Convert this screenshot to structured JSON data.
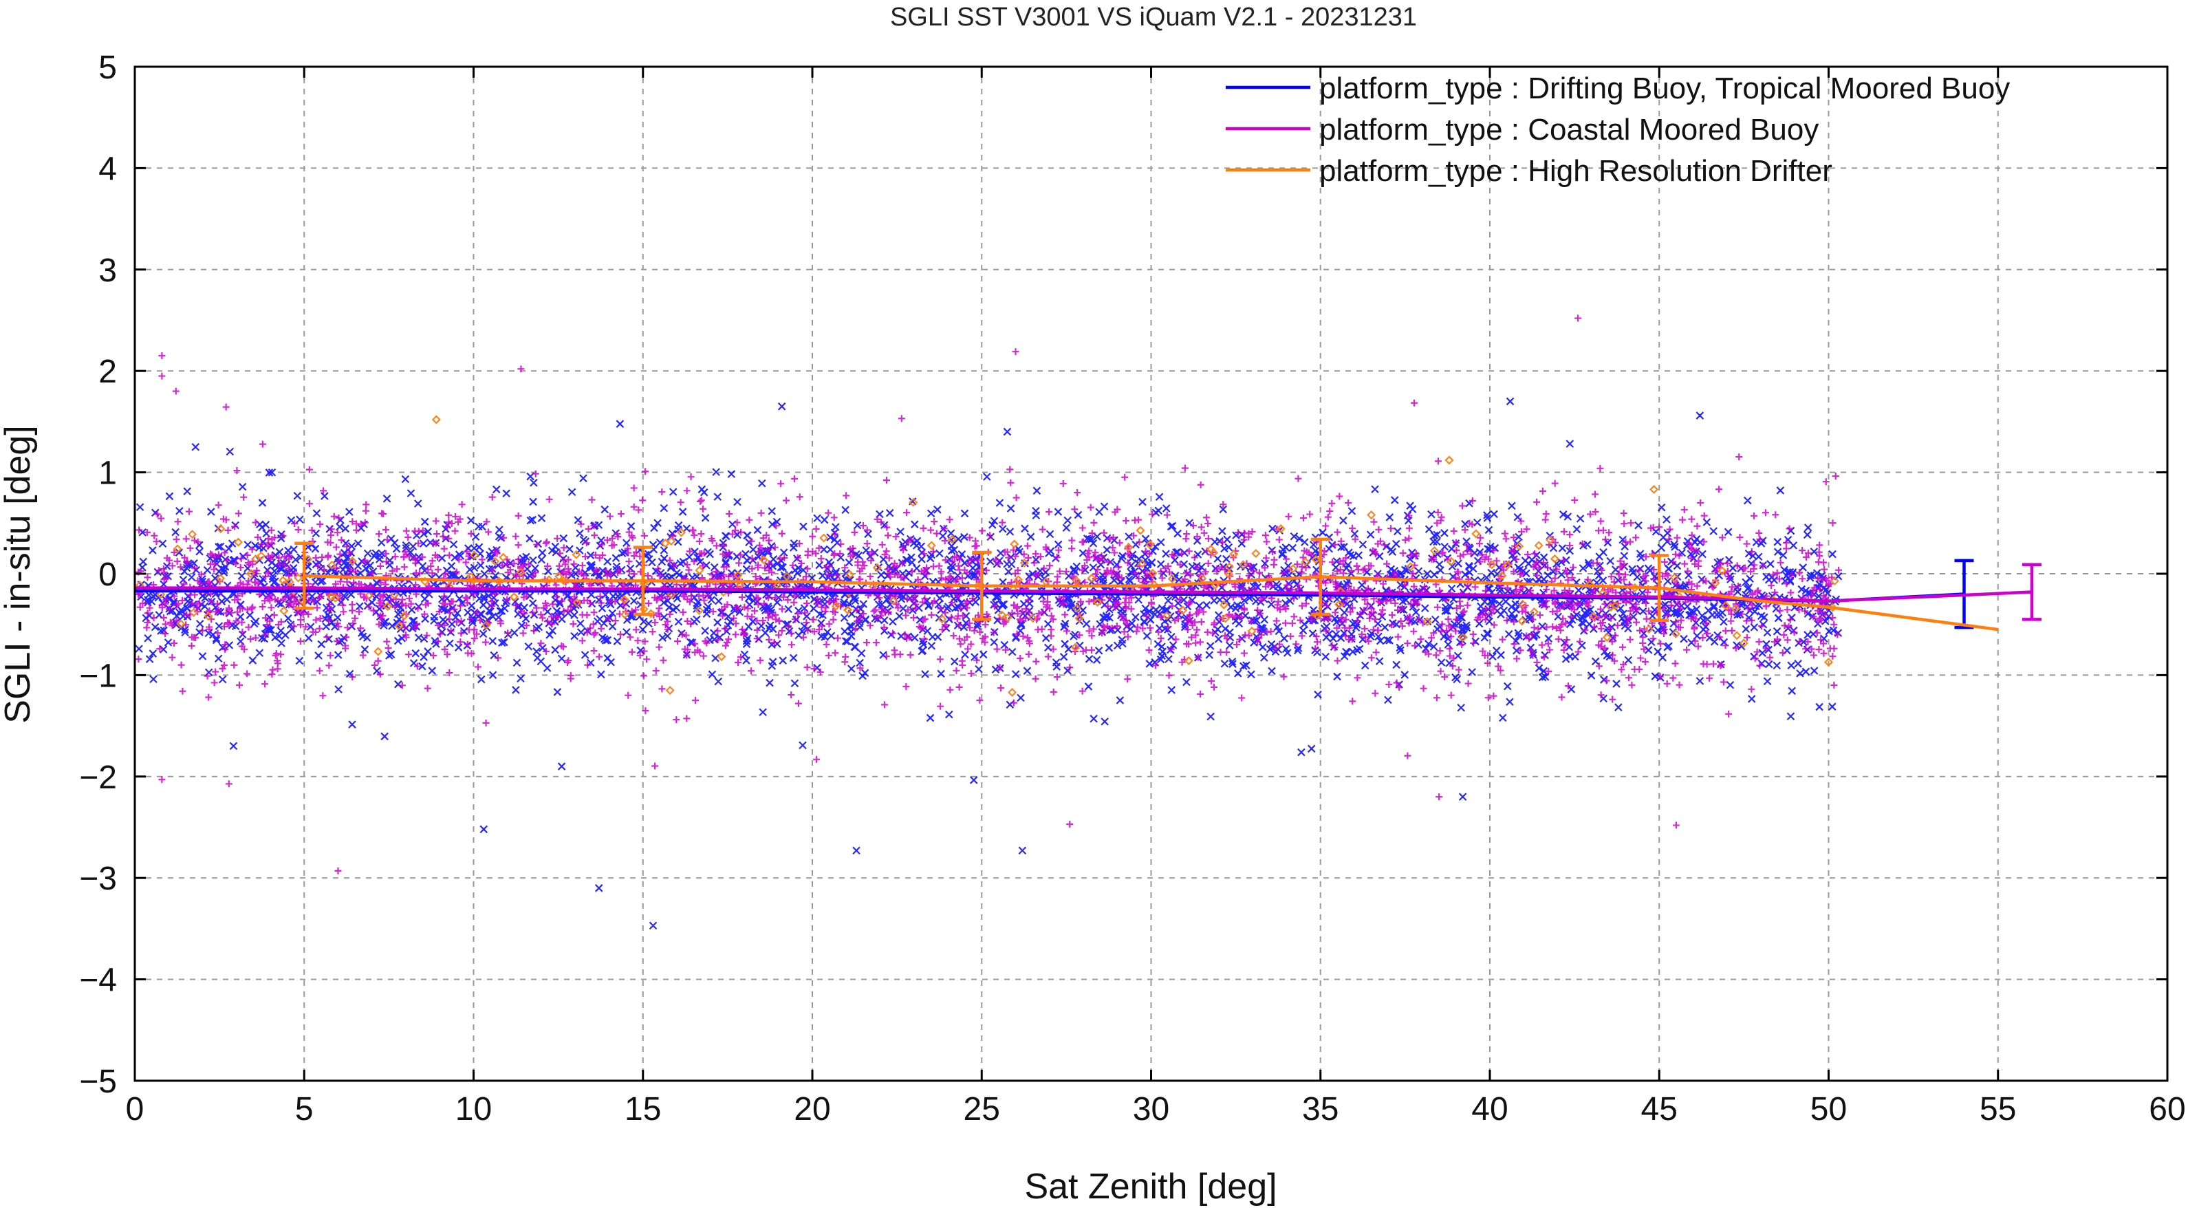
{
  "colors": {
    "tropical": "#0000ff",
    "coastal": "#cc00cc",
    "drifter": "#ff7f0e",
    "grid": "#999999",
    "axis": "#000000"
  },
  "chart_data": {
    "type": "scatter",
    "title": "SGLI SST V3001 VS iQuam V2.1  - 20231231",
    "xlabel": "Sat Zenith [deg]",
    "ylabel": "SGLI - in-situ [deg]",
    "xlim": [
      0,
      60
    ],
    "ylim": [
      -5,
      5
    ],
    "xticks": [
      0,
      5,
      10,
      15,
      20,
      25,
      30,
      35,
      40,
      45,
      50,
      55,
      60
    ],
    "yticks": [
      -5,
      -4,
      -3,
      -2,
      -1,
      0,
      1,
      2,
      3,
      4,
      5
    ],
    "grid": true,
    "legend_position": "top-right",
    "series": [
      {
        "name": "platform_type : Drifting Buoy, Tropical Moored Buoy",
        "marker": "x",
        "mean_line": {
          "x": [
            0,
            5,
            10,
            15,
            20,
            25,
            30,
            35,
            40,
            45,
            48,
            50,
            54
          ],
          "y": [
            -0.17,
            -0.17,
            -0.17,
            -0.17,
            -0.18,
            -0.19,
            -0.2,
            -0.21,
            -0.23,
            -0.24,
            -0.26,
            -0.27,
            -0.2
          ]
        },
        "error_bars": [
          {
            "x": 54,
            "y": -0.2,
            "yerr": 0.33
          }
        ],
        "outliers": [
          [
            13.7,
            -3.1
          ],
          [
            15.3,
            -3.47
          ],
          [
            21.3,
            -2.73
          ],
          [
            26.2,
            -2.73
          ],
          [
            10.3,
            -2.52
          ],
          [
            19.1,
            1.65
          ],
          [
            40.6,
            1.7
          ],
          [
            46.2,
            1.56
          ],
          [
            12.6,
            -1.9
          ],
          [
            39.2,
            -2.2
          ]
        ]
      },
      {
        "name": "platform_type : Coastal Moored Buoy",
        "marker": "+",
        "mean_line": {
          "x": [
            0,
            5,
            10,
            15,
            20,
            25,
            30,
            35,
            40,
            45,
            48,
            50,
            56
          ],
          "y": [
            -0.14,
            -0.14,
            -0.15,
            -0.15,
            -0.16,
            -0.17,
            -0.18,
            -0.19,
            -0.21,
            -0.23,
            -0.25,
            -0.27,
            -0.18
          ]
        },
        "error_bars": [
          {
            "x": 56,
            "y": -0.18,
            "yerr": 0.27
          }
        ],
        "outliers": [
          [
            0.8,
            2.15
          ],
          [
            0.8,
            1.95
          ],
          [
            11.4,
            2.02
          ],
          [
            26.0,
            2.19
          ],
          [
            42.6,
            2.52
          ],
          [
            6.0,
            -2.93
          ],
          [
            27.6,
            -2.47
          ],
          [
            45.5,
            -2.48
          ],
          [
            0.8,
            -2.03
          ],
          [
            38.5,
            -2.2
          ]
        ]
      },
      {
        "name": "platform_type : High Resolution Drifter",
        "marker": "diamond",
        "mean_line": {
          "x": [
            5,
            10,
            15,
            20,
            25,
            30,
            35,
            40,
            45,
            48,
            50,
            55
          ],
          "y": [
            -0.02,
            -0.07,
            -0.07,
            -0.08,
            -0.12,
            -0.12,
            -0.03,
            -0.09,
            -0.14,
            -0.27,
            -0.33,
            -0.55
          ]
        },
        "error_bars": [
          {
            "x": 5,
            "y": -0.02,
            "yerr": 0.32
          },
          {
            "x": 15,
            "y": -0.07,
            "yerr": 0.33
          },
          {
            "x": 25,
            "y": -0.12,
            "yerr": 0.33
          },
          {
            "x": 35,
            "y": -0.03,
            "yerr": 0.37
          },
          {
            "x": 45,
            "y": -0.14,
            "yerr": 0.32
          }
        ],
        "outliers": [
          [
            8.9,
            1.52
          ],
          [
            15.8,
            -1.15
          ],
          [
            25.9,
            -1.17
          ],
          [
            38.8,
            1.12
          ],
          [
            36.5,
            0.58
          ]
        ]
      }
    ]
  }
}
